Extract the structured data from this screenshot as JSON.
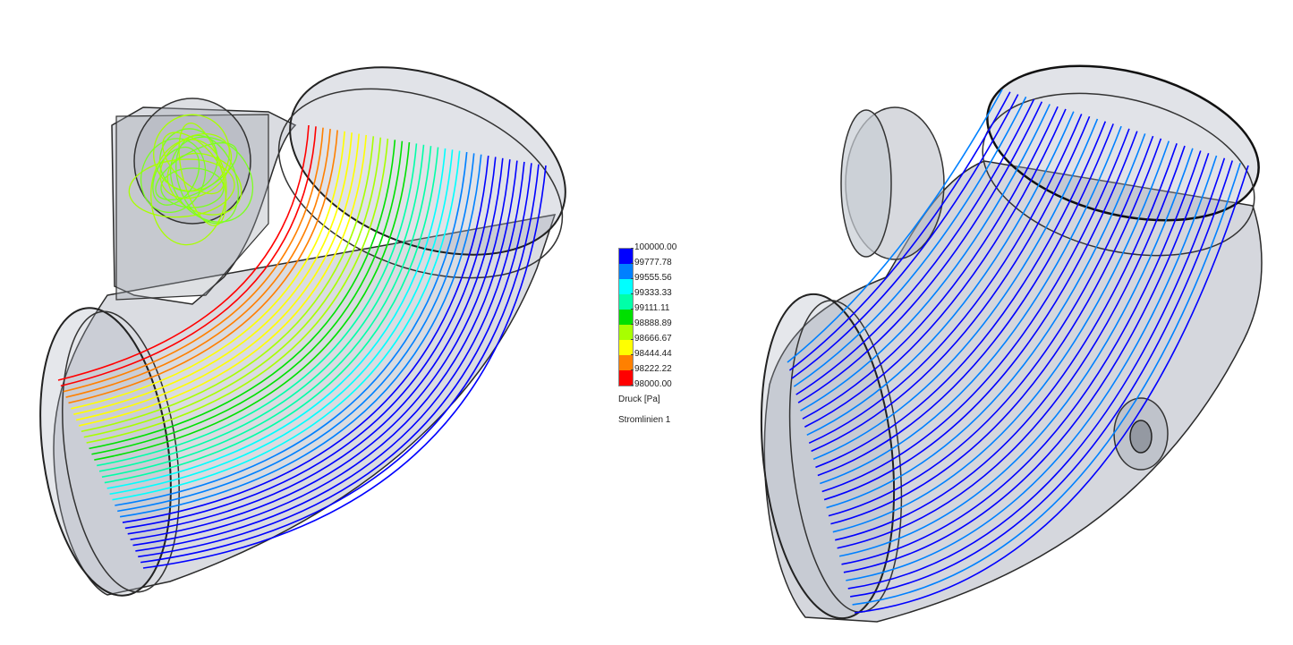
{
  "legend": {
    "ticks": [
      "100000.00",
      "99777.78",
      "99555.56",
      "99333.33",
      "99111.11",
      "98888.89",
      "98666.67",
      "98444.44",
      "98222.22",
      "98000.00"
    ],
    "colors": [
      "#0000ff",
      "#0080ff",
      "#00ffff",
      "#00ffa8",
      "#00e000",
      "#a8ff00",
      "#ffff00",
      "#ff8000",
      "#ff0000"
    ],
    "quantity": "Druck [Pa]",
    "plot_name": "Stromlinien 1"
  },
  "scene": {
    "body_color": "#9ea3b0",
    "edge_color": "#2a2a2a"
  }
}
